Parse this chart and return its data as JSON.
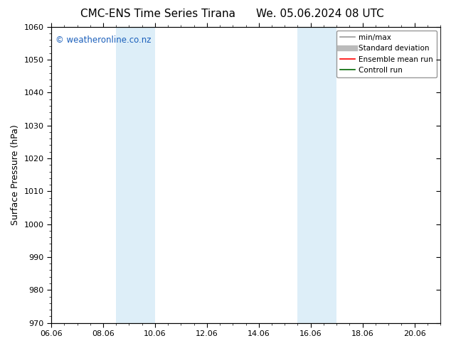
{
  "title_left": "CMC-ENS Time Series Tirana",
  "title_right": "We. 05.06.2024 08 UTC",
  "ylabel": "Surface Pressure (hPa)",
  "ylim": [
    970,
    1060
  ],
  "yticks": [
    970,
    980,
    990,
    1000,
    1010,
    1020,
    1030,
    1040,
    1050,
    1060
  ],
  "x_min": 0.0,
  "x_max": 15.0,
  "x_tick_labels": [
    "06.06",
    "08.06",
    "10.06",
    "12.06",
    "14.06",
    "16.06",
    "18.06",
    "20.06"
  ],
  "x_tick_positions": [
    0.0,
    2.0,
    4.0,
    6.0,
    8.0,
    10.0,
    12.0,
    14.0
  ],
  "shaded_bands": [
    {
      "x_start": 2.5,
      "x_end": 3.2
    },
    {
      "x_start": 3.2,
      "x_end": 4.0
    },
    {
      "x_start": 9.5,
      "x_end": 10.2
    },
    {
      "x_start": 10.2,
      "x_end": 11.0
    }
  ],
  "shaded_color": "#ddeef8",
  "watermark_text": "© weatheronline.co.nz",
  "watermark_color": "#1a5fbb",
  "legend_items": [
    {
      "label": "min/max",
      "color": "#999999",
      "linewidth": 1.2,
      "linestyle": "-"
    },
    {
      "label": "Standard deviation",
      "color": "#bbbbbb",
      "linewidth": 6,
      "linestyle": "-"
    },
    {
      "label": "Ensemble mean run",
      "color": "#ff0000",
      "linewidth": 1.2,
      "linestyle": "-"
    },
    {
      "label": "Controll run",
      "color": "#006600",
      "linewidth": 1.2,
      "linestyle": "-"
    }
  ],
  "background_color": "#ffffff",
  "title_fontsize": 11,
  "tick_fontsize": 8,
  "label_fontsize": 9,
  "figsize": [
    6.34,
    4.9
  ],
  "dpi": 100
}
